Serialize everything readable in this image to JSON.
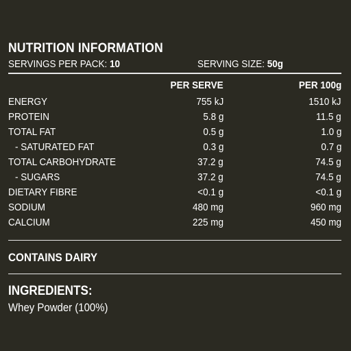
{
  "panel": {
    "title": "NUTRITION INFORMATION",
    "servings_per_pack_label": "SERVINGS PER PACK:",
    "servings_per_pack_value": "10",
    "serving_size_label": "SERVING SIZE:",
    "serving_size_value": "50g"
  },
  "table": {
    "headers": {
      "per_serve": "PER SERVE",
      "per_100g": "PER 100g"
    },
    "rows": [
      {
        "name": "ENERGY",
        "per_serve": "755 kJ",
        "per_100g": "1510 kJ",
        "indent": false
      },
      {
        "name": "PROTEIN",
        "per_serve": "5.8 g",
        "per_100g": "11.5 g",
        "indent": false
      },
      {
        "name": "TOTAL FAT",
        "per_serve": "0.5 g",
        "per_100g": "1.0 g",
        "indent": false
      },
      {
        "name": "- SATURATED FAT",
        "per_serve": "0.3 g",
        "per_100g": "0.7 g",
        "indent": true
      },
      {
        "name": "TOTAL CARBOHYDRATE",
        "per_serve": "37.2 g",
        "per_100g": "74.5 g",
        "indent": false
      },
      {
        "name": "- SUGARS",
        "per_serve": "37.2 g",
        "per_100g": "74.5 g",
        "indent": true
      },
      {
        "name": "DIETARY FIBRE",
        "per_serve": "<0.1 g",
        "per_100g": "<0.1 g",
        "indent": false
      },
      {
        "name": "SODIUM",
        "per_serve": "480 mg",
        "per_100g": "960 mg",
        "indent": false
      },
      {
        "name": "CALCIUM",
        "per_serve": "225 mg",
        "per_100g": "450 mg",
        "indent": false
      }
    ]
  },
  "allergen": {
    "text": "CONTAINS DAIRY"
  },
  "ingredients": {
    "title": "INGREDIENTS:",
    "text": "Whey Powder (100%)"
  },
  "colors": {
    "background": "#2b2a22",
    "text": "#ffffff",
    "rule": "#e8e8e8"
  }
}
